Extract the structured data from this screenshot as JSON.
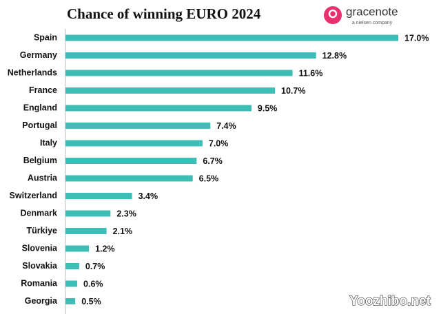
{
  "chart_data": {
    "type": "bar",
    "orientation": "horizontal",
    "title": "Chance of winning EURO 2024",
    "categories": [
      "Spain",
      "Germany",
      "Netherlands",
      "France",
      "England",
      "Portugal",
      "Italy",
      "Belgium",
      "Austria",
      "Switzerland",
      "Denmark",
      "Türkiye",
      "Slovenia",
      "Slovakia",
      "Romania",
      "Georgia"
    ],
    "values": [
      17.0,
      12.8,
      11.6,
      10.7,
      9.5,
      7.4,
      7.0,
      6.7,
      6.5,
      3.4,
      2.3,
      2.1,
      1.2,
      0.7,
      0.6,
      0.5
    ],
    "value_labels": [
      "17.0%",
      "12.8%",
      "11.6%",
      "10.7%",
      "9.5%",
      "7.4%",
      "7.0%",
      "6.7%",
      "6.5%",
      "3.4%",
      "2.3%",
      "2.1%",
      "1.2%",
      "0.7%",
      "0.6%",
      "0.5%"
    ],
    "color": "#3dbdb5"
  },
  "logo": {
    "name": "gracenote",
    "tagline": "a nielsen company"
  },
  "watermark": "Yoozhibo.net"
}
